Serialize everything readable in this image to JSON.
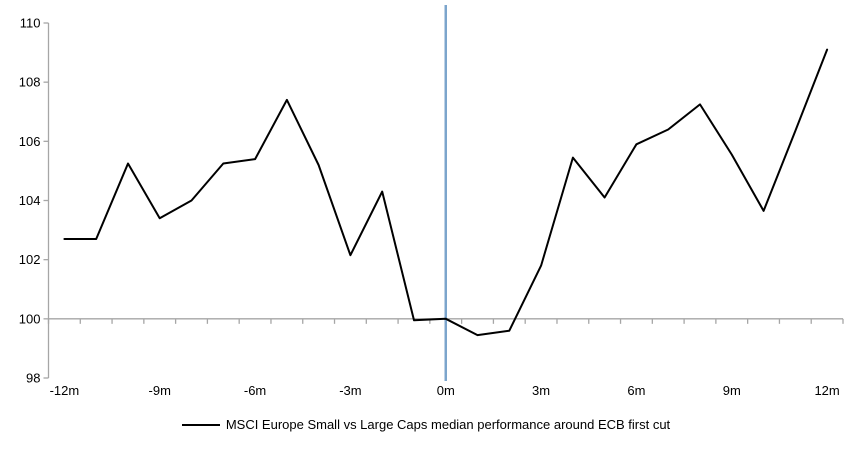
{
  "chart_data": {
    "type": "line",
    "title": "",
    "xlabel": "",
    "ylabel": "",
    "ylim": [
      98,
      110
    ],
    "xlim_months": [
      -12,
      12
    ],
    "grid": "single horizontal baseline at y=100",
    "legend_position": "bottom-center",
    "yticks": [
      110,
      108,
      106,
      104,
      102,
      100,
      98
    ],
    "xticks": [
      {
        "value": -12,
        "label": "-12m"
      },
      {
        "value": -9,
        "label": "-9m"
      },
      {
        "value": -6,
        "label": "-6m"
      },
      {
        "value": -3,
        "label": "-3m"
      },
      {
        "value": 0,
        "label": "0m"
      },
      {
        "value": 3,
        "label": "3m"
      },
      {
        "value": 6,
        "label": "6m"
      },
      {
        "value": 9,
        "label": "9m"
      },
      {
        "value": 12,
        "label": "12m"
      }
    ],
    "series": [
      {
        "name": "MSCI Europe Small vs Large Caps median performance around ECB first cut",
        "color": "#000000",
        "x": [
          -12,
          -11,
          -10,
          -9,
          -8,
          -7,
          -6,
          -5,
          -4,
          -3,
          -2,
          -1,
          0,
          1,
          2,
          3,
          4,
          5,
          6,
          7,
          8,
          9,
          10,
          11,
          12
        ],
        "values": [
          102.7,
          102.7,
          105.25,
          103.4,
          104.0,
          105.25,
          105.4,
          107.4,
          105.2,
          102.15,
          104.3,
          99.95,
          100.0,
          99.45,
          99.6,
          101.8,
          105.45,
          104.1,
          105.9,
          106.4,
          107.25,
          105.55,
          103.65,
          106.35,
          109.1
        ]
      }
    ],
    "event_line": {
      "x": 0,
      "color": "#7CA5CC",
      "meaning": "ECB first cut (0m)"
    },
    "axis_color": "#A6A6A6",
    "baseline_value": 100
  }
}
